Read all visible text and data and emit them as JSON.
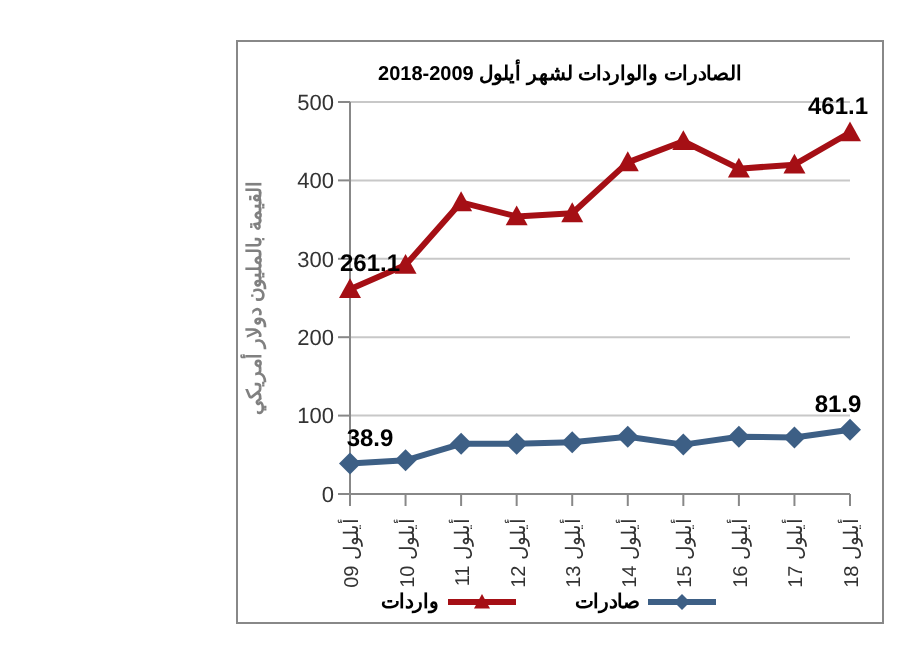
{
  "chart_data": {
    "type": "line",
    "title": "الصادرات والواردات لشهر أيلول 2009-2018",
    "ylabel": "القيمة بالمليون دولار أمريكي",
    "categories": [
      "أيلول 09",
      "أيلول 10",
      "أيلول 11",
      "أيلول 12",
      "أيلول 13",
      "أيلول 14",
      "أيلول 15",
      "أيلول 16",
      "أيلول 17",
      "أيلول 18"
    ],
    "series": [
      {
        "name": "واردات",
        "color": "#a50f15",
        "marker": "triangle",
        "values": [
          261.1,
          292,
          372,
          354,
          358,
          423,
          450,
          415,
          420,
          461.1
        ],
        "value_labels": [
          "261.1",
          null,
          null,
          null,
          null,
          null,
          null,
          null,
          null,
          "461.1"
        ]
      },
      {
        "name": "صادرات",
        "color": "#3d5f85",
        "marker": "diamond",
        "values": [
          38.9,
          43,
          64,
          64,
          66,
          73,
          63,
          73,
          72,
          81.9
        ],
        "value_labels": [
          "38.9",
          null,
          null,
          null,
          null,
          null,
          null,
          null,
          null,
          "81.9"
        ]
      }
    ],
    "ylim": [
      0,
      500
    ],
    "yticks": [
      0,
      100,
      200,
      300,
      400,
      500
    ],
    "grid": "y",
    "legend": "bottom"
  }
}
